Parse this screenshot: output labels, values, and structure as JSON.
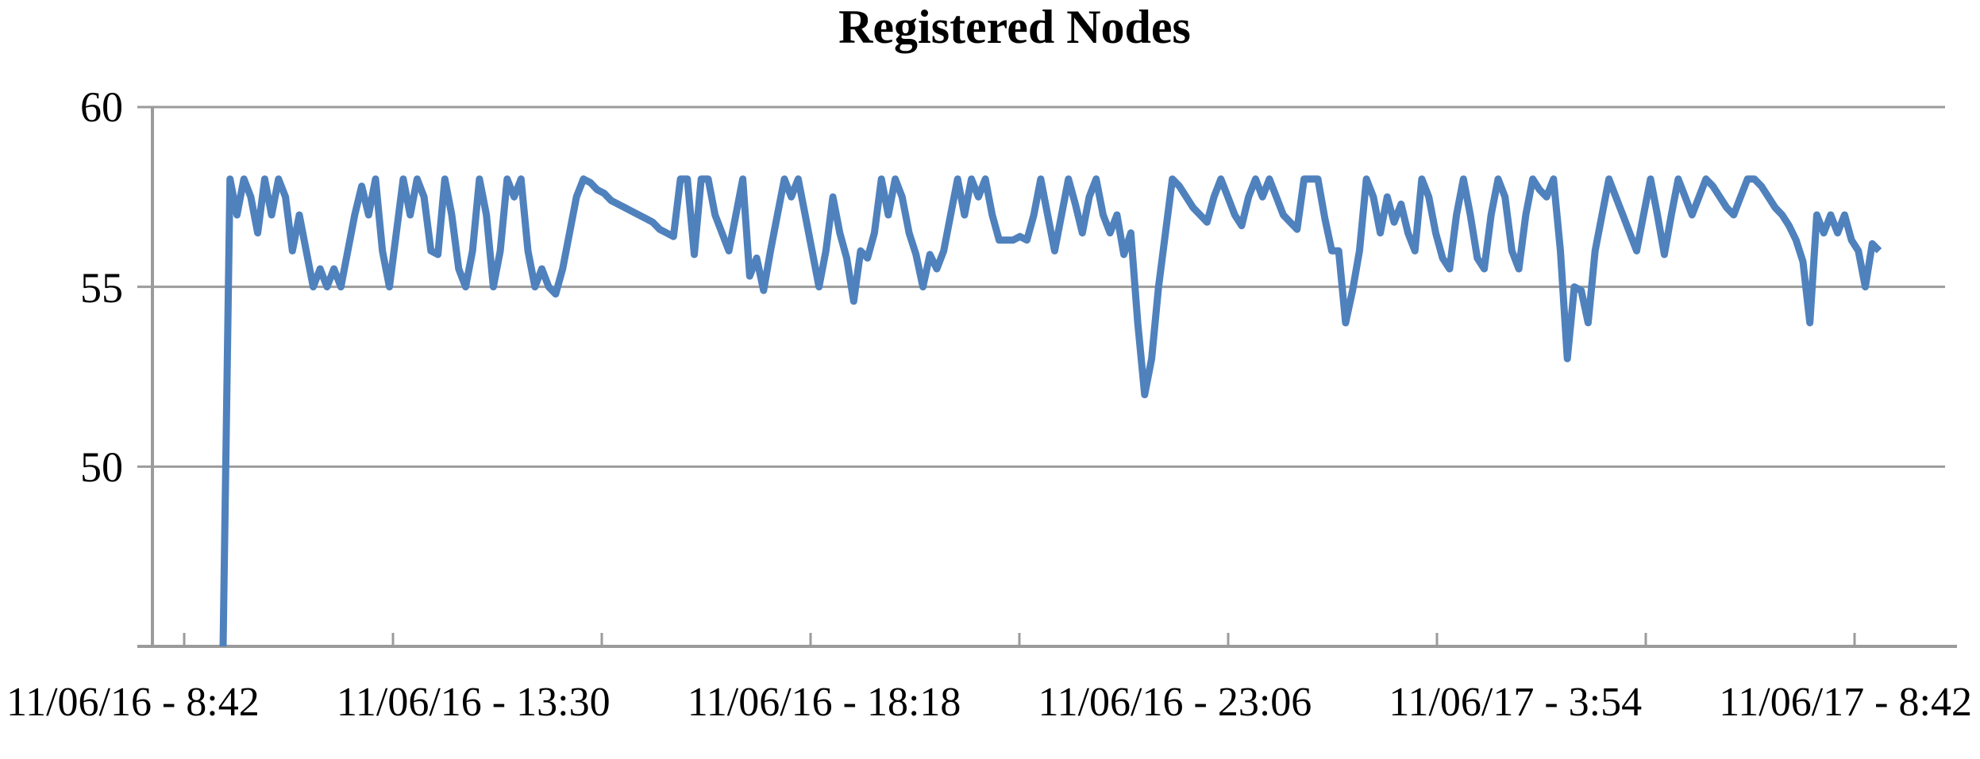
{
  "chart_data": {
    "type": "line",
    "title": "Registered Nodes",
    "xlabel": "",
    "ylabel": "",
    "ylim": [
      45,
      60
    ],
    "y_tick_labels": [
      "60",
      "55",
      "50"
    ],
    "y_tick_values": [
      60,
      55,
      50
    ],
    "x_tick_labels": [
      "11/06/16 - 8:42",
      "11/06/16 - 13:30",
      "11/06/16 - 18:18",
      "11/06/16 - 23:06",
      "11/06/17 - 3:54",
      "11/06/17 - 8:42"
    ],
    "grid": "horizontal",
    "legend_position": "none",
    "line_color": "#4F81BD",
    "axis_color": "#9B9B9B",
    "series": [
      {
        "name": "Registered Nodes",
        "values": [
          45,
          58,
          57,
          58,
          57.5,
          56.5,
          58,
          57,
          58,
          57.5,
          56,
          57,
          56,
          55,
          55.5,
          55,
          55.5,
          55,
          56,
          57,
          57.8,
          57,
          58,
          56,
          55,
          56.5,
          58,
          57,
          58,
          57.5,
          56,
          55.9,
          58,
          57,
          55.5,
          55,
          56,
          58,
          57,
          55,
          56,
          58,
          57.5,
          58,
          56,
          55,
          55.5,
          55,
          54.8,
          55.5,
          56.5,
          57.5,
          58,
          57.9,
          57.7,
          57.6,
          57.4,
          57.3,
          57.2,
          57.1,
          57,
          56.9,
          56.8,
          56.6,
          56.5,
          56.4,
          58,
          58,
          55.9,
          58,
          58,
          57,
          56.5,
          56,
          57,
          58,
          55.3,
          55.8,
          54.9,
          56,
          57,
          58,
          57.5,
          58,
          57,
          56,
          55,
          56,
          57.5,
          56.5,
          55.8,
          54.6,
          56,
          55.8,
          56.5,
          58,
          57,
          58,
          57.5,
          56.5,
          55.9,
          55,
          55.9,
          55.5,
          56,
          57,
          58,
          57,
          58,
          57.5,
          58,
          57,
          56.3,
          56.3,
          56.3,
          56.4,
          56.3,
          57,
          58,
          57,
          56,
          57,
          58,
          57.3,
          56.5,
          57.5,
          58,
          57,
          56.5,
          57,
          55.9,
          56.5,
          54,
          52,
          53,
          55,
          56.5,
          58,
          57.8,
          57.5,
          57.2,
          57,
          56.8,
          57.5,
          58,
          57.5,
          57,
          56.7,
          57.5,
          58,
          57.5,
          58,
          57.5,
          57,
          56.8,
          56.6,
          58,
          58,
          58,
          56.9,
          56,
          56,
          54,
          54.9,
          56,
          58,
          57.5,
          56.5,
          57.5,
          56.8,
          57.3,
          56.5,
          56,
          58,
          57.5,
          56.5,
          55.8,
          55.5,
          57,
          58,
          57,
          55.8,
          55.5,
          57,
          58,
          57.5,
          56,
          55.5,
          57,
          58,
          57.7,
          57.5,
          58,
          56,
          53,
          55,
          54.9,
          54,
          56,
          57,
          58,
          57.5,
          57,
          56.5,
          56,
          57,
          58,
          57,
          55.9,
          57,
          58,
          57.5,
          57,
          57.5,
          58,
          57.8,
          57.5,
          57.2,
          57,
          57.5,
          58,
          58,
          57.8,
          57.5,
          57.2,
          57,
          56.7,
          56.3,
          55.7,
          54,
          57,
          56.5,
          57,
          56.5,
          57,
          56.3,
          56,
          55,
          56.2,
          56
        ]
      }
    ]
  }
}
